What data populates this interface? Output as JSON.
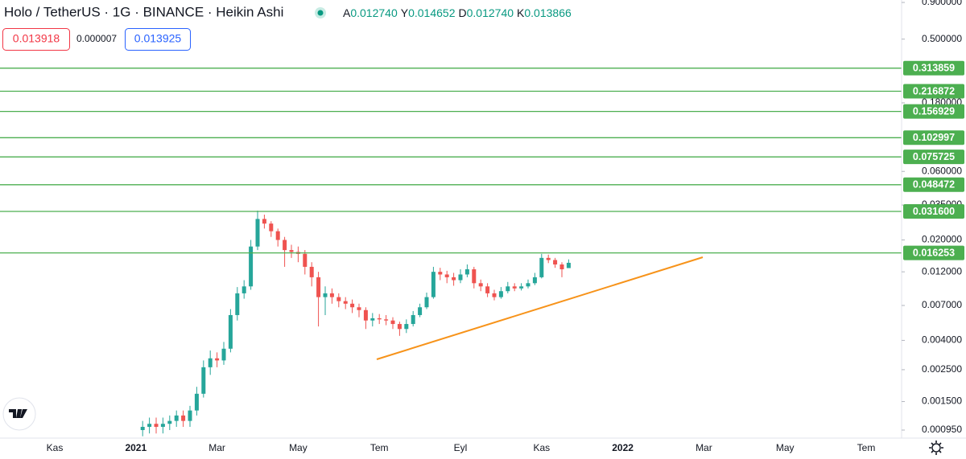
{
  "header": {
    "title": "Holo / TetherUS · 1G · BINANCE · Heikin Ashi",
    "ohlc": [
      {
        "key": "A",
        "value": "0.012740"
      },
      {
        "key": "Y",
        "value": "0.014652"
      },
      {
        "key": "D",
        "value": "0.012740"
      },
      {
        "key": "K",
        "value": "0.013866"
      }
    ],
    "sell_price": "0.013918",
    "spread": "0.000007",
    "buy_price": "0.013925"
  },
  "chart_data": {
    "type": "candlestick",
    "log_scale": true,
    "up_color": "#26a69a",
    "down_color": "#ef5350",
    "ylim": [
      0.000857,
      0.936
    ],
    "yticks": [
      {
        "value": 0.9,
        "label": "0.900000"
      },
      {
        "value": 0.5,
        "label": "0.500000"
      },
      {
        "value": 0.18,
        "label": "0.180000"
      },
      {
        "value": 0.06,
        "label": "0.060000"
      },
      {
        "value": 0.035,
        "label": "0.035000"
      },
      {
        "value": 0.02,
        "label": "0.020000"
      },
      {
        "value": 0.012,
        "label": "0.012000"
      },
      {
        "value": 0.007,
        "label": "0.007000"
      },
      {
        "value": 0.004,
        "label": "0.004000"
      },
      {
        "value": 0.0025,
        "label": "0.002500"
      },
      {
        "value": 0.0015,
        "label": "0.001500"
      },
      {
        "value": 0.00095,
        "label": "0.000950"
      }
    ],
    "price_lines": {
      "color": "#4caf50",
      "values": [
        0.313859,
        0.216872,
        0.156929,
        0.102997,
        0.075725,
        0.048472,
        {
          "value": 0.0316,
          "label": "0.031600"
        },
        0.016253
      ]
    },
    "categories": [
      null,
      null,
      null,
      null,
      null,
      null,
      null,
      null,
      "Kas",
      null,
      null,
      null,
      null,
      null,
      null,
      null,
      null,
      null,
      null,
      null,
      "2021",
      null,
      null,
      null,
      null,
      null,
      null,
      null,
      null,
      null,
      null,
      null,
      "Mar",
      null,
      null,
      null,
      null,
      null,
      null,
      null,
      null,
      null,
      null,
      null,
      "May",
      null,
      null,
      null,
      null,
      null,
      null,
      null,
      null,
      null,
      null,
      null,
      "Tem",
      null,
      null,
      null,
      null,
      null,
      null,
      null,
      null,
      null,
      null,
      null,
      "Eyl",
      null,
      null,
      null,
      null,
      null,
      null,
      null,
      null,
      null,
      null,
      null,
      "Kas",
      null,
      null,
      null,
      null,
      null,
      null,
      null,
      null,
      null,
      null,
      null,
      "2022",
      null,
      null,
      null,
      null,
      null,
      null,
      null,
      null,
      null,
      null,
      null,
      "Mar",
      null,
      null,
      null,
      null,
      null,
      null,
      null,
      null,
      null,
      null,
      null,
      "May",
      null,
      null,
      null,
      null,
      null,
      null,
      null,
      null,
      null,
      null,
      null,
      "Tem",
      null,
      null,
      null
    ],
    "open": [
      null,
      null,
      null,
      null,
      null,
      null,
      null,
      null,
      null,
      null,
      null,
      null,
      null,
      null,
      null,
      null,
      null,
      null,
      null,
      null,
      null,
      0.00095,
      0.001,
      0.00105,
      0.001,
      0.00105,
      0.0011,
      0.0012,
      0.0011,
      0.0013,
      0.0017,
      0.0026,
      0.003,
      0.0029,
      0.0035,
      0.006,
      0.0085,
      0.0095,
      0.018,
      0.028,
      0.026,
      0.023,
      0.02,
      0.017,
      0.0165,
      0.016,
      0.013,
      0.011,
      0.008,
      0.0085,
      0.008,
      0.0075,
      0.0072,
      0.0068,
      0.0065,
      0.0055,
      0.0057,
      0.0056,
      0.0055,
      0.0052,
      0.0048,
      0.0052,
      0.006,
      0.0068,
      0.008,
      0.012,
      0.0115,
      0.011,
      0.0105,
      0.0115,
      0.0125,
      0.01,
      0.0095,
      0.0085,
      0.008,
      0.0088,
      0.0095,
      0.0092,
      0.0095,
      0.01,
      0.011,
      0.015,
      0.0145,
      0.0135,
      0.01274,
      null,
      null,
      null,
      null,
      null,
      null,
      null,
      null,
      null,
      null,
      null,
      null,
      null,
      null,
      null,
      null,
      null,
      null,
      null,
      null,
      null,
      null,
      null,
      null,
      null,
      null,
      null,
      null,
      null,
      null,
      null,
      null,
      null,
      null,
      null,
      null,
      null,
      null,
      null,
      null,
      null,
      null,
      null,
      null,
      null,
      null,
      null
    ],
    "high": [
      null,
      null,
      null,
      null,
      null,
      null,
      null,
      null,
      null,
      null,
      null,
      null,
      null,
      null,
      null,
      null,
      null,
      null,
      null,
      null,
      null,
      0.0011,
      0.00116,
      0.00116,
      0.00116,
      0.0012,
      0.0013,
      0.0013,
      0.0014,
      0.0019,
      0.0029,
      0.0034,
      0.0033,
      0.0039,
      0.0066,
      0.0094,
      0.0105,
      0.02,
      0.032,
      0.03,
      0.027,
      0.024,
      0.021,
      0.0185,
      0.018,
      0.017,
      0.014,
      0.012,
      0.0095,
      0.0092,
      0.0085,
      0.008,
      0.0077,
      0.0072,
      0.0068,
      0.0062,
      0.0061,
      0.006,
      0.0058,
      0.0054,
      0.0056,
      0.0064,
      0.0072,
      0.0086,
      0.013,
      0.0128,
      0.0122,
      0.0118,
      0.0125,
      0.0135,
      0.013,
      0.0106,
      0.01,
      0.009,
      0.0094,
      0.0102,
      0.01,
      0.01,
      0.0106,
      0.0118,
      0.016,
      0.0158,
      0.015,
      0.014,
      0.014652,
      null,
      null,
      null,
      null,
      null,
      null,
      null,
      null,
      null,
      null,
      null,
      null,
      null,
      null,
      null,
      null,
      null,
      null,
      null,
      null,
      null,
      null,
      null,
      null,
      null,
      null,
      null,
      null,
      null,
      null,
      null,
      null,
      null,
      null,
      null,
      null,
      null,
      null,
      null,
      null,
      null,
      null,
      null,
      null,
      null,
      null,
      null
    ],
    "low": [
      null,
      null,
      null,
      null,
      null,
      null,
      null,
      null,
      null,
      null,
      null,
      null,
      null,
      null,
      null,
      null,
      null,
      null,
      null,
      null,
      null,
      0.00086,
      0.0009,
      0.0009,
      0.0009,
      0.00095,
      0.001,
      0.001,
      0.001,
      0.0012,
      0.0016,
      0.0023,
      0.0026,
      0.0027,
      0.0033,
      0.0055,
      0.0078,
      0.009,
      0.017,
      0.024,
      0.021,
      0.018,
      0.013,
      0.015,
      0.014,
      0.0115,
      0.0095,
      0.005,
      0.006,
      0.0072,
      0.0068,
      0.0066,
      0.0062,
      0.0058,
      0.0048,
      0.005,
      0.0052,
      0.0051,
      0.0048,
      0.0043,
      0.0045,
      0.005,
      0.0058,
      0.0066,
      0.0078,
      0.0105,
      0.01,
      0.0096,
      0.01,
      0.011,
      0.0092,
      0.0088,
      0.008,
      0.0076,
      0.0078,
      0.0085,
      0.0088,
      0.0089,
      0.0092,
      0.0097,
      0.0108,
      0.0138,
      0.0128,
      0.011,
      0.01274,
      null,
      null,
      null,
      null,
      null,
      null,
      null,
      null,
      null,
      null,
      null,
      null,
      null,
      null,
      null,
      null,
      null,
      null,
      null,
      null,
      null,
      null,
      null,
      null,
      null,
      null,
      null,
      null,
      null,
      null,
      null,
      null,
      null,
      null,
      null,
      null,
      null,
      null,
      null,
      null,
      null,
      null,
      null,
      null,
      null,
      null,
      null
    ],
    "close": [
      null,
      null,
      null,
      null,
      null,
      null,
      null,
      null,
      null,
      null,
      null,
      null,
      null,
      null,
      null,
      null,
      null,
      null,
      null,
      null,
      null,
      0.001,
      0.00105,
      0.001,
      0.00105,
      0.0011,
      0.0012,
      0.0011,
      0.0013,
      0.0017,
      0.0026,
      0.003,
      0.0029,
      0.0035,
      0.006,
      0.0085,
      0.0095,
      0.018,
      0.028,
      0.026,
      0.023,
      0.02,
      0.017,
      0.0165,
      0.016,
      0.013,
      0.011,
      0.008,
      0.0085,
      0.008,
      0.0075,
      0.0072,
      0.0068,
      0.0065,
      0.0055,
      0.0057,
      0.0056,
      0.0055,
      0.0052,
      0.0048,
      0.0052,
      0.006,
      0.0068,
      0.008,
      0.012,
      0.0115,
      0.011,
      0.0105,
      0.0115,
      0.0125,
      0.01,
      0.0095,
      0.0085,
      0.008,
      0.0088,
      0.0095,
      0.0092,
      0.0095,
      0.01,
      0.011,
      0.015,
      0.0145,
      0.0135,
      0.0125,
      0.013866,
      null,
      null,
      null,
      null,
      null,
      null,
      null,
      null,
      null,
      null,
      null,
      null,
      null,
      null,
      null,
      null,
      null,
      null,
      null,
      null,
      null,
      null,
      null,
      null,
      null,
      null,
      null,
      null,
      null,
      null,
      null,
      null,
      null,
      null,
      null,
      null,
      null,
      null,
      null,
      null,
      null,
      null,
      null,
      null,
      null,
      null,
      null
    ]
  }
}
